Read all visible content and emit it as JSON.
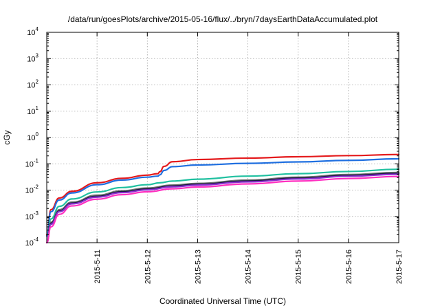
{
  "chart_data": {
    "type": "line",
    "title": "/data/run/goesPlots/archive/2015-05-16/flux/../bryn/7daysEarthDataAccumulated.plot",
    "xlabel": "Coordinated Universal Time (UTC)",
    "ylabel": "cGy",
    "x_scale": "time",
    "y_scale": "log",
    "xlim": [
      "2015-05-10",
      "2015-05-17"
    ],
    "ylim": [
      0.0001,
      10000
    ],
    "grid": true,
    "x_ticks": [
      "2015-5-11",
      "2015-5-12",
      "2015-5-13",
      "2015-5-14",
      "2015-5-15",
      "2015-5-16",
      "2015-5-17"
    ],
    "y_ticks": [
      {
        "value": 0.0001,
        "base": "10",
        "exp": "-4"
      },
      {
        "value": 0.001,
        "base": "10",
        "exp": "-3"
      },
      {
        "value": 0.01,
        "base": "10",
        "exp": "-2"
      },
      {
        "value": 0.1,
        "base": "10",
        "exp": "-1"
      },
      {
        "value": 1,
        "base": "10",
        "exp": "0"
      },
      {
        "value": 10,
        "base": "10",
        "exp": "1"
      },
      {
        "value": 100,
        "base": "10",
        "exp": "2"
      },
      {
        "value": 1000,
        "base": "10",
        "exp": "3"
      },
      {
        "value": 10000,
        "base": "10",
        "exp": "4"
      }
    ],
    "series": [
      {
        "color": "#e41a1c",
        "x": [
          "2015-05-10T00:00",
          "2015-05-10T02:00",
          "2015-05-10T06:00",
          "2015-05-10T12:00",
          "2015-05-11T00:00",
          "2015-05-11T12:00",
          "2015-05-12T00:00",
          "2015-05-12T05:00",
          "2015-05-12T06:00",
          "2015-05-12T08:00",
          "2015-05-12T12:00",
          "2015-05-13T00:00",
          "2015-05-14T00:00",
          "2015-05-15T00:00",
          "2015-05-16T00:00",
          "2015-05-17T00:00"
        ],
        "values": [
          0.0002,
          0.0018,
          0.005,
          0.009,
          0.019,
          0.028,
          0.037,
          0.042,
          0.05,
          0.08,
          0.12,
          0.145,
          0.165,
          0.185,
          0.205,
          0.225
        ]
      },
      {
        "color": "#1f6fe0",
        "x": [
          "2015-05-10T00:00",
          "2015-05-10T02:00",
          "2015-05-10T06:00",
          "2015-05-10T12:00",
          "2015-05-11T00:00",
          "2015-05-11T12:00",
          "2015-05-12T00:00",
          "2015-05-12T05:00",
          "2015-05-12T06:00",
          "2015-05-12T08:00",
          "2015-05-12T12:00",
          "2015-05-13T00:00",
          "2015-05-14T00:00",
          "2015-05-15T00:00",
          "2015-05-16T00:00",
          "2015-05-17T00:00"
        ],
        "values": [
          0.00018,
          0.0015,
          0.0042,
          0.0078,
          0.016,
          0.024,
          0.031,
          0.034,
          0.038,
          0.056,
          0.078,
          0.09,
          0.104,
          0.118,
          0.135,
          0.155
        ]
      },
      {
        "color": "#20c0a0",
        "x": [
          "2015-05-10T00:00",
          "2015-05-10T02:00",
          "2015-05-10T06:00",
          "2015-05-10T12:00",
          "2015-05-11T00:00",
          "2015-05-11T12:00",
          "2015-05-12T00:00",
          "2015-05-12T06:00",
          "2015-05-12T12:00",
          "2015-05-13T00:00",
          "2015-05-14T00:00",
          "2015-05-15T00:00",
          "2015-05-16T00:00",
          "2015-05-17T00:00"
        ],
        "values": [
          0.0001,
          0.0008,
          0.0024,
          0.0046,
          0.0085,
          0.0125,
          0.016,
          0.019,
          0.022,
          0.026,
          0.034,
          0.042,
          0.051,
          0.062
        ]
      },
      {
        "color": "#707070",
        "x": [
          "2015-05-10T00:00",
          "2015-05-10T02:00",
          "2015-05-10T06:00",
          "2015-05-10T12:00",
          "2015-05-11T00:00",
          "2015-05-11T12:00",
          "2015-05-12T00:00",
          "2015-05-12T12:00",
          "2015-05-13T00:00",
          "2015-05-14T00:00",
          "2015-05-15T00:00",
          "2015-05-16T00:00",
          "2015-05-17T00:00"
        ],
        "values": [
          0.0001,
          0.0006,
          0.0018,
          0.0035,
          0.0064,
          0.0094,
          0.012,
          0.0155,
          0.018,
          0.024,
          0.031,
          0.039,
          0.047
        ]
      },
      {
        "color": "#1a1a40",
        "x": [
          "2015-05-10T00:00",
          "2015-05-10T02:00",
          "2015-05-10T06:00",
          "2015-05-10T12:00",
          "2015-05-11T00:00",
          "2015-05-11T12:00",
          "2015-05-12T00:00",
          "2015-05-12T12:00",
          "2015-05-13T00:00",
          "2015-05-14T00:00",
          "2015-05-15T00:00",
          "2015-05-16T00:00",
          "2015-05-17T00:00"
        ],
        "values": [
          0.0001,
          0.00055,
          0.0016,
          0.0032,
          0.0058,
          0.0086,
          0.011,
          0.0143,
          0.0167,
          0.022,
          0.0285,
          0.036,
          0.043
        ]
      },
      {
        "color": "#8b2fd0",
        "x": [
          "2015-05-10T00:00",
          "2015-05-10T02:00",
          "2015-05-10T06:00",
          "2015-05-10T12:00",
          "2015-05-11T00:00",
          "2015-05-11T12:00",
          "2015-05-12T00:00",
          "2015-05-12T12:00",
          "2015-05-13T00:00",
          "2015-05-14T00:00",
          "2015-05-15T00:00",
          "2015-05-16T00:00",
          "2015-05-17T00:00"
        ],
        "values": [
          0.0001,
          0.0005,
          0.0015,
          0.003,
          0.0054,
          0.008,
          0.0102,
          0.0133,
          0.0155,
          0.0205,
          0.0265,
          0.0335,
          0.04
        ]
      },
      {
        "color": "#ff2fc0",
        "x": [
          "2015-05-10T00:00",
          "2015-05-10T02:00",
          "2015-05-10T06:00",
          "2015-05-10T12:00",
          "2015-05-11T00:00",
          "2015-05-11T12:00",
          "2015-05-12T00:00",
          "2015-05-12T12:00",
          "2015-05-13T00:00",
          "2015-05-14T00:00",
          "2015-05-15T00:00",
          "2015-05-16T00:00",
          "2015-05-17T00:00"
        ],
        "values": [
          0.0001,
          0.0004,
          0.0012,
          0.0025,
          0.0045,
          0.0067,
          0.0086,
          0.0112,
          0.0131,
          0.0172,
          0.022,
          0.0275,
          0.033
        ]
      }
    ]
  }
}
